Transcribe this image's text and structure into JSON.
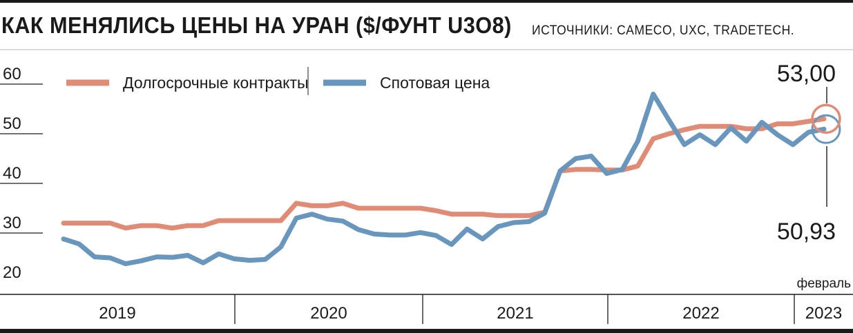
{
  "chart_data": {
    "type": "line",
    "title": "КАК МЕНЯЛИСЬ ЦЕНЫ НА УРАН ($/ФУНТ U3O8)",
    "source": "ИСТОЧНИКИ: CAMECO, UXC, TRADETECH.",
    "ylim": [
      20,
      60
    ],
    "yticks": [
      "60",
      "50",
      "40",
      "30",
      "20"
    ],
    "xlim": [
      0,
      50
    ],
    "year_labels": [
      {
        "label": "2019",
        "start": 0,
        "end": 12
      },
      {
        "label": "2020",
        "start": 12,
        "end": 24
      },
      {
        "label": "2021",
        "start": 24,
        "end": 36
      },
      {
        "label": "2022",
        "start": 36,
        "end": 48
      },
      {
        "label": "2023",
        "start": 48,
        "end": 50
      }
    ],
    "period_note": "февраль",
    "grid": false,
    "legend_position": "top-left",
    "series": [
      {
        "name": "Долгосрочные контракты",
        "color": "#e08b75",
        "x": [
          0,
          1,
          2,
          3,
          4,
          5,
          6,
          7,
          8,
          9,
          10,
          11,
          12,
          13,
          14,
          15,
          16,
          17,
          18,
          19,
          20,
          21,
          22,
          23,
          24,
          25,
          26,
          27,
          28,
          29,
          30,
          31,
          32,
          33,
          34,
          35,
          36,
          37,
          38,
          39,
          40,
          41,
          42,
          43,
          44,
          45,
          46,
          47,
          48,
          49
        ],
        "values": [
          32.0,
          32.0,
          32.0,
          32.0,
          31.0,
          31.5,
          31.5,
          31.0,
          31.5,
          31.5,
          32.5,
          32.5,
          32.5,
          32.5,
          32.5,
          36.0,
          35.5,
          35.5,
          36.0,
          35.0,
          35.0,
          35.0,
          35.0,
          35.0,
          34.5,
          33.8,
          33.8,
          33.8,
          33.5,
          33.5,
          33.5,
          34.2,
          42.5,
          42.8,
          42.8,
          42.7,
          42.7,
          43.5,
          49.0,
          50.0,
          50.8,
          51.5,
          51.5,
          51.5,
          51.0,
          51.0,
          52.0,
          52.0,
          52.5,
          53.0
        ]
      },
      {
        "name": "Спотовая цена",
        "color": "#6896bc",
        "x": [
          0,
          1,
          2,
          3,
          4,
          5,
          6,
          7,
          8,
          9,
          10,
          11,
          12,
          13,
          14,
          15,
          16,
          17,
          18,
          19,
          20,
          21,
          22,
          23,
          24,
          25,
          26,
          27,
          28,
          29,
          30,
          31,
          32,
          33,
          34,
          35,
          36,
          37,
          38,
          39,
          40,
          41,
          42,
          43,
          44,
          45,
          46,
          47,
          48,
          49
        ],
        "values": [
          28.8,
          27.8,
          25.2,
          25.0,
          23.8,
          24.4,
          25.2,
          25.1,
          25.5,
          24.0,
          25.8,
          24.8,
          24.5,
          24.7,
          27.2,
          33.0,
          33.8,
          32.8,
          32.4,
          30.7,
          29.8,
          29.6,
          29.6,
          30.1,
          29.5,
          27.7,
          30.8,
          28.8,
          31.3,
          32.1,
          32.3,
          34.0,
          42.5,
          45.0,
          45.5,
          42.0,
          42.8,
          48.5,
          58.0,
          52.8,
          47.8,
          49.8,
          47.8,
          51.2,
          48.5,
          52.3,
          49.8,
          47.8,
          50.3,
          50.93
        ]
      }
    ],
    "annotations": {
      "long_term_last": "53,00",
      "spot_last": "50,93"
    }
  }
}
